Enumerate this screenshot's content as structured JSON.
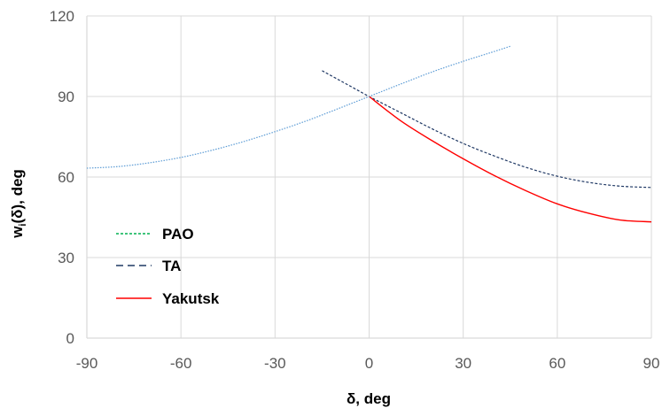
{
  "chart_data": {
    "type": "line",
    "title": "",
    "xlabel": "δ, deg",
    "ylabel_main": "w",
    "ylabel_sub": "i",
    "ylabel_rest": "(δ), deg",
    "xlim": [
      -90,
      90
    ],
    "ylim": [
      0,
      120
    ],
    "x_ticks": [
      -90,
      -60,
      -30,
      0,
      30,
      60,
      90
    ],
    "y_ticks": [
      0,
      30,
      60,
      90,
      120
    ],
    "x_tick_labels": [
      "-90",
      "-60",
      "-30",
      "0",
      "30",
      "60",
      "90"
    ],
    "y_tick_labels": [
      "0",
      "30",
      "60",
      "90",
      "120"
    ],
    "grid": true,
    "legend_position": "left",
    "series": [
      {
        "name": "PAO",
        "color": "#00b050",
        "dash": "dotted",
        "show_line": false,
        "x": [
          -90,
          -80,
          -70,
          -60,
          -50,
          -40,
          -30,
          -20,
          -10,
          0,
          10,
          20,
          30,
          40,
          45
        ],
        "y": [
          63.3,
          63.9,
          65.3,
          67.3,
          70.0,
          73.2,
          76.9,
          80.9,
          85.4,
          90.0,
          94.6,
          99.1,
          103.1,
          106.8,
          108.7
        ]
      },
      {
        "name": "TA",
        "color": "#1f3864",
        "dash": "short-dash",
        "x": [
          -15,
          -10,
          -5,
          0,
          10,
          20,
          30,
          40,
          50,
          60,
          70,
          80,
          90
        ],
        "y": [
          99.6,
          96.4,
          93.2,
          90.0,
          84.0,
          78.0,
          72.5,
          67.8,
          63.6,
          60.3,
          58.0,
          56.6,
          56.1
        ]
      },
      {
        "name": "Yakutsk",
        "color": "#ff0000",
        "dash": "solid",
        "x": [
          0,
          10,
          20,
          30,
          40,
          50,
          60,
          70,
          80,
          90
        ],
        "y": [
          90.0,
          81.0,
          73.6,
          66.8,
          60.5,
          54.9,
          50.0,
          46.5,
          44.0,
          43.3
        ]
      },
      {
        "name": "",
        "color": "#5b9bd5",
        "dash": "dotted",
        "show_in_legend": false,
        "x": [
          -90,
          -80,
          -70,
          -60,
          -50,
          -40,
          -30,
          -20,
          -10,
          0,
          10,
          20,
          30,
          40,
          45
        ],
        "y": [
          63.3,
          63.9,
          65.3,
          67.3,
          70.0,
          73.2,
          76.9,
          80.9,
          85.4,
          90.0,
          94.6,
          99.1,
          103.1,
          106.8,
          108.7
        ]
      }
    ]
  }
}
